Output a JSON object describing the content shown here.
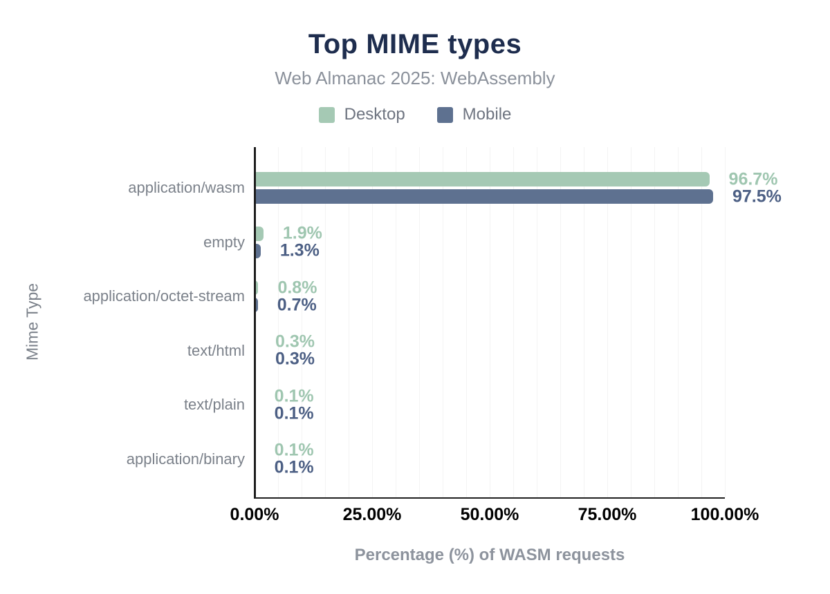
{
  "chart_data": {
    "type": "bar",
    "orientation": "horizontal",
    "title": "Top MIME types",
    "subtitle": "Web Almanac 2025: WebAssembly",
    "xlabel": "Percentage (%) of WASM requests",
    "ylabel": "Mime Type",
    "categories": [
      "application/wasm",
      "empty",
      "application/octet-stream",
      "text/html",
      "text/plain",
      "application/binary"
    ],
    "series": [
      {
        "name": "Desktop",
        "color": "#a5c9b4",
        "label_color": "#9fc6b0",
        "values": [
          96.7,
          1.9,
          0.8,
          0.3,
          0.1,
          0.1
        ]
      },
      {
        "name": "Mobile",
        "color": "#5e7190",
        "label_color": "#4c5f84",
        "values": [
          97.5,
          1.3,
          0.7,
          0.3,
          0.1,
          0.1
        ]
      }
    ],
    "x_ticks": [
      {
        "value": 0,
        "label": "0.00%"
      },
      {
        "value": 25,
        "label": "25.00%"
      },
      {
        "value": 50,
        "label": "50.00%"
      },
      {
        "value": 75,
        "label": "75.00%"
      },
      {
        "value": 100,
        "label": "100.00%"
      }
    ],
    "xlim": [
      0,
      100
    ],
    "grid_step": 5,
    "grid": "vertical-minor",
    "legend_position": "top",
    "value_label_format": "{value}%"
  },
  "colors": {
    "background": "#ffffff",
    "title": "#1e2d4e",
    "subtitle": "#8b919b",
    "legend_text": "#6e7480",
    "category_label": "#7b818a",
    "tick_label": "#000000",
    "axis_title": "#8d939d",
    "axis_line": "#1f1f1f",
    "grid": "#f3f3f3"
  }
}
